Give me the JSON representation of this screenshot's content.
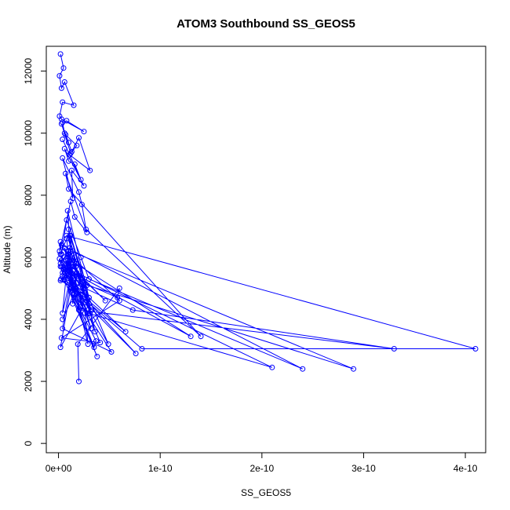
{
  "chart_data": {
    "type": "line",
    "title": "ATOM3 Southbound SS_GEOS5",
    "xlabel": "SS_GEOS5",
    "ylabel": "Altitude (m)",
    "xlim": [
      -1.2e-11,
      4.2e-10
    ],
    "ylim": [
      -300,
      12800
    ],
    "xticks": [
      0,
      1e-10,
      2e-10,
      3e-10,
      4e-10
    ],
    "xtick_labels": [
      "0e+00",
      "1e-10",
      "2e-10",
      "3e-10",
      "4e-10"
    ],
    "yticks": [
      0,
      2000,
      4000,
      6000,
      8000,
      10000,
      12000
    ],
    "ytick_labels": [
      "0",
      "2000",
      "4000",
      "6000",
      "8000",
      "10000",
      "12000"
    ],
    "series": [
      {
        "color": "#0000ff",
        "marker": "open-circle",
        "x": [
          2e-12,
          5e-12,
          1e-12,
          3e-12,
          6e-12,
          1.5e-11,
          4e-12,
          1e-12,
          3e-12,
          2.5e-11,
          8e-12,
          4e-12,
          6e-12,
          1e-11,
          3e-12,
          1.2e-11,
          1.8e-11,
          7e-12,
          1.3e-11,
          2e-11,
          3.1e-11,
          1.1e-11,
          4e-12,
          2.2e-11,
          1.6e-11,
          1e-11,
          6e-12,
          2.5e-11,
          1.3e-11,
          1.4e-11,
          4e-12,
          2e-11,
          2.3e-11,
          2.7e-11,
          1.4e-10,
          1e-11,
          7e-12,
          2.8e-11,
          1.6e-11,
          1.2e-11,
          1e-12,
          2e-12,
          3e-12,
          8e-12,
          2.2e-11,
          3e-11,
          2.4e-10,
          3e-12,
          1.1e-11,
          1.2e-11,
          3e-11,
          9e-12,
          1.3e-11,
          6e-12,
          1.1e-11,
          2.4e-11,
          1e-12,
          6e-12,
          3.2e-11,
          1e-11,
          1.4e-11,
          1.8e-11,
          1.4e-11,
          8e-12,
          4.1e-10,
          8.2e-11,
          2.5e-12,
          1.7e-11,
          1.2e-11,
          2.9e-10,
          2.8e-11,
          1.1e-11,
          1.9e-11,
          1.2e-11,
          3e-11,
          2e-12,
          1e-11,
          1.7e-11,
          1.6e-11,
          1.4e-11,
          4e-12,
          1e-11,
          2e-12,
          1.2e-11,
          8e-12,
          2e-12,
          1e-11,
          2.2e-11,
          4e-12,
          1.5e-11,
          3.5e-11,
          3.7e-11,
          1.2e-11,
          1.8e-11,
          1.4e-11,
          1.2e-11,
          9e-12,
          2.6e-11,
          2.9e-11,
          6e-12,
          1.2e-11,
          1.3e-10,
          3e-12,
          9e-12,
          1.6e-11,
          7e-12,
          2.1e-11,
          3.1e-11,
          1.7e-11,
          4.9e-11,
          3e-12,
          1e-11,
          6e-11,
          3e-12,
          4.1e-11,
          2.6e-11,
          5e-12,
          2.4e-11,
          2e-12,
          1.2e-11,
          5.2e-11,
          4e-12,
          1.2e-11,
          2e-11,
          3.3e-10,
          7.3e-11,
          6e-12,
          3e-11,
          1.8e-11,
          2.1e-10,
          2.9e-11,
          8e-12,
          3.2e-11,
          2.2e-11,
          6.6e-11,
          4e-12,
          1.1e-11,
          1.2e-11,
          7.6e-11,
          2.8e-11,
          1e-11,
          4.6e-11,
          2.1e-11,
          2.4e-11,
          2e-12,
          3.8e-11,
          4e-12,
          9e-12,
          2.6e-11,
          3.6e-11,
          2.3e-11,
          5.8e-11,
          6e-11,
          1.9e-11,
          2e-11
        ],
        "y": [
          12550,
          12100,
          11850,
          11450,
          11650,
          10900,
          11000,
          10550,
          10450,
          10050,
          10400,
          10350,
          10000,
          9700,
          10300,
          9350,
          9600,
          9950,
          9400,
          9850,
          8800,
          9300,
          9800,
          8500,
          9000,
          9100,
          9500,
          8300,
          8800,
          7900,
          9200,
          8100,
          7700,
          6900,
          3450,
          8200,
          8700,
          6800,
          7300,
          7800,
          6200,
          6500,
          6100,
          7200,
          6000,
          5300,
          2400,
          6400,
          5900,
          6700,
          4700,
          7500,
          5500,
          6000,
          6300,
          5000,
          5950,
          5500,
          4300,
          6900,
          5200,
          5800,
          6200,
          6700,
          3050,
          3050,
          5300,
          5700,
          6200,
          2400,
          5100,
          6700,
          5400,
          6000,
          4700,
          5250,
          5400,
          4900,
          6000,
          5700,
          4200,
          6200,
          5800,
          5500,
          6600,
          6100,
          5600,
          5300,
          4000,
          4800,
          3100,
          3300,
          4900,
          5400,
          4500,
          5800,
          6100,
          4200,
          3200,
          6300,
          5900,
          3450,
          5700,
          5500,
          5000,
          5900,
          4400,
          4200,
          5700,
          3200,
          5900,
          6100,
          4600,
          3400,
          3250,
          4400,
          5600,
          4400,
          3100,
          5000,
          2950,
          3700,
          5300,
          4300,
          3050,
          4300,
          5300,
          4500,
          5500,
          2450,
          4200,
          5800,
          3700,
          4800,
          3600,
          5500,
          5900,
          5000,
          2900,
          4600,
          5800,
          4600,
          5400,
          4800,
          5700,
          2800,
          5400,
          5600,
          5000,
          3600,
          5200,
          4700,
          5000,
          3200,
          2000
        ]
      }
    ]
  }
}
